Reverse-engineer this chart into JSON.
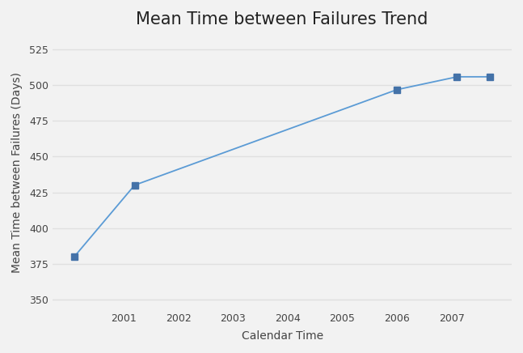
{
  "title": "Mean Time between Failures Trend",
  "xlabel": "Calendar Time",
  "ylabel": "Mean Time between Failures (Days)",
  "x": [
    2000.1,
    2001.2,
    2006.0,
    2007.1,
    2007.7
  ],
  "y": [
    380,
    430,
    497,
    506,
    506
  ],
  "line_color": "#5b9bd5",
  "marker_color": "#4472a8",
  "background_color": "#f2f2f2",
  "plot_bg_color": "#f2f2f2",
  "ylim": [
    343,
    535
  ],
  "xlim": [
    1999.7,
    2008.1
  ],
  "yticks": [
    350,
    375,
    400,
    425,
    450,
    475,
    500,
    525
  ],
  "xticks": [
    2001,
    2002,
    2003,
    2004,
    2005,
    2006,
    2007
  ],
  "title_fontsize": 15,
  "label_fontsize": 10,
  "tick_fontsize": 9,
  "grid_color": "#e0e0e0",
  "grid_linewidth": 1.0
}
